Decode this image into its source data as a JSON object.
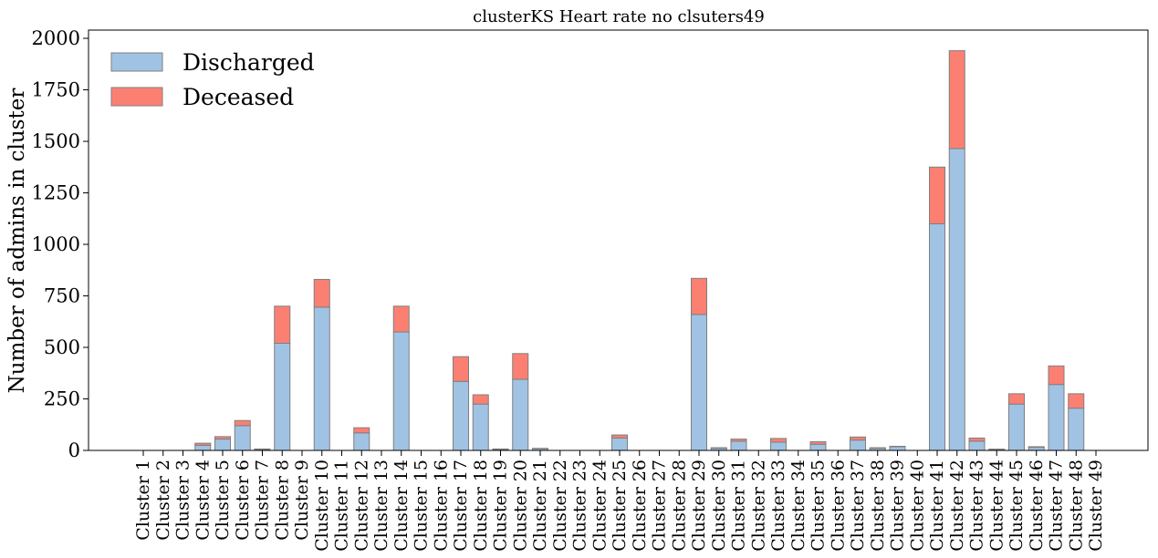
{
  "chart_data": {
    "type": "bar",
    "stacked": true,
    "title": "clusterKS Heart rate no clsuters49",
    "xlabel": "",
    "ylabel": "Number of admins in cluster",
    "ylim": [
      0,
      2040
    ],
    "yticks": [
      0,
      250,
      500,
      750,
      1000,
      1250,
      1500,
      1750,
      2000
    ],
    "ytick_labels": [
      "0",
      "250",
      "500",
      "750",
      "1000",
      "1250",
      "1500",
      "1750",
      "2000"
    ],
    "grid": false,
    "legend_position": "top-left",
    "categories": [
      "Cluster 1",
      "Cluster 2",
      "Cluster 3",
      "Cluster 4",
      "Cluster 5",
      "Cluster 6",
      "Cluster 7",
      "Cluster 8",
      "Cluster 9",
      "Cluster 10",
      "Cluster 11",
      "Cluster 12",
      "Cluster 13",
      "Cluster 14",
      "Cluster 15",
      "Cluster 16",
      "Cluster 17",
      "Cluster 18",
      "Cluster 19",
      "Cluster 20",
      "Cluster 21",
      "Cluster 22",
      "Cluster 23",
      "Cluster 24",
      "Cluster 25",
      "Cluster 26",
      "Cluster 27",
      "Cluster 28",
      "Cluster 29",
      "Cluster 30",
      "Cluster 31",
      "Cluster 32",
      "Cluster 33",
      "Cluster 34",
      "Cluster 35",
      "Cluster 36",
      "Cluster 37",
      "Cluster 38",
      "Cluster 39",
      "Cluster 40",
      "Cluster 41",
      "Cluster 42",
      "Cluster 43",
      "Cluster 44",
      "Cluster 45",
      "Cluster 46",
      "Cluster 47",
      "Cluster 48",
      "Cluster 49"
    ],
    "series": [
      {
        "name": "Discharged",
        "color": "#a0c3e3",
        "values": [
          0,
          0,
          0,
          25,
          55,
          120,
          5,
          520,
          0,
          695,
          0,
          85,
          0,
          575,
          0,
          0,
          335,
          225,
          5,
          345,
          8,
          0,
          0,
          0,
          60,
          0,
          0,
          0,
          660,
          10,
          45,
          0,
          40,
          0,
          30,
          0,
          50,
          10,
          18,
          0,
          1100,
          1465,
          45,
          5,
          225,
          15,
          320,
          205,
          0
        ]
      },
      {
        "name": "Deceased",
        "color": "#fb8072",
        "values": [
          0,
          0,
          0,
          10,
          12,
          25,
          2,
          180,
          0,
          135,
          0,
          25,
          0,
          125,
          0,
          0,
          120,
          45,
          2,
          125,
          2,
          0,
          0,
          0,
          15,
          0,
          0,
          0,
          175,
          3,
          10,
          0,
          18,
          0,
          12,
          0,
          15,
          3,
          2,
          0,
          275,
          475,
          15,
          1,
          50,
          3,
          90,
          70,
          0
        ]
      }
    ]
  }
}
